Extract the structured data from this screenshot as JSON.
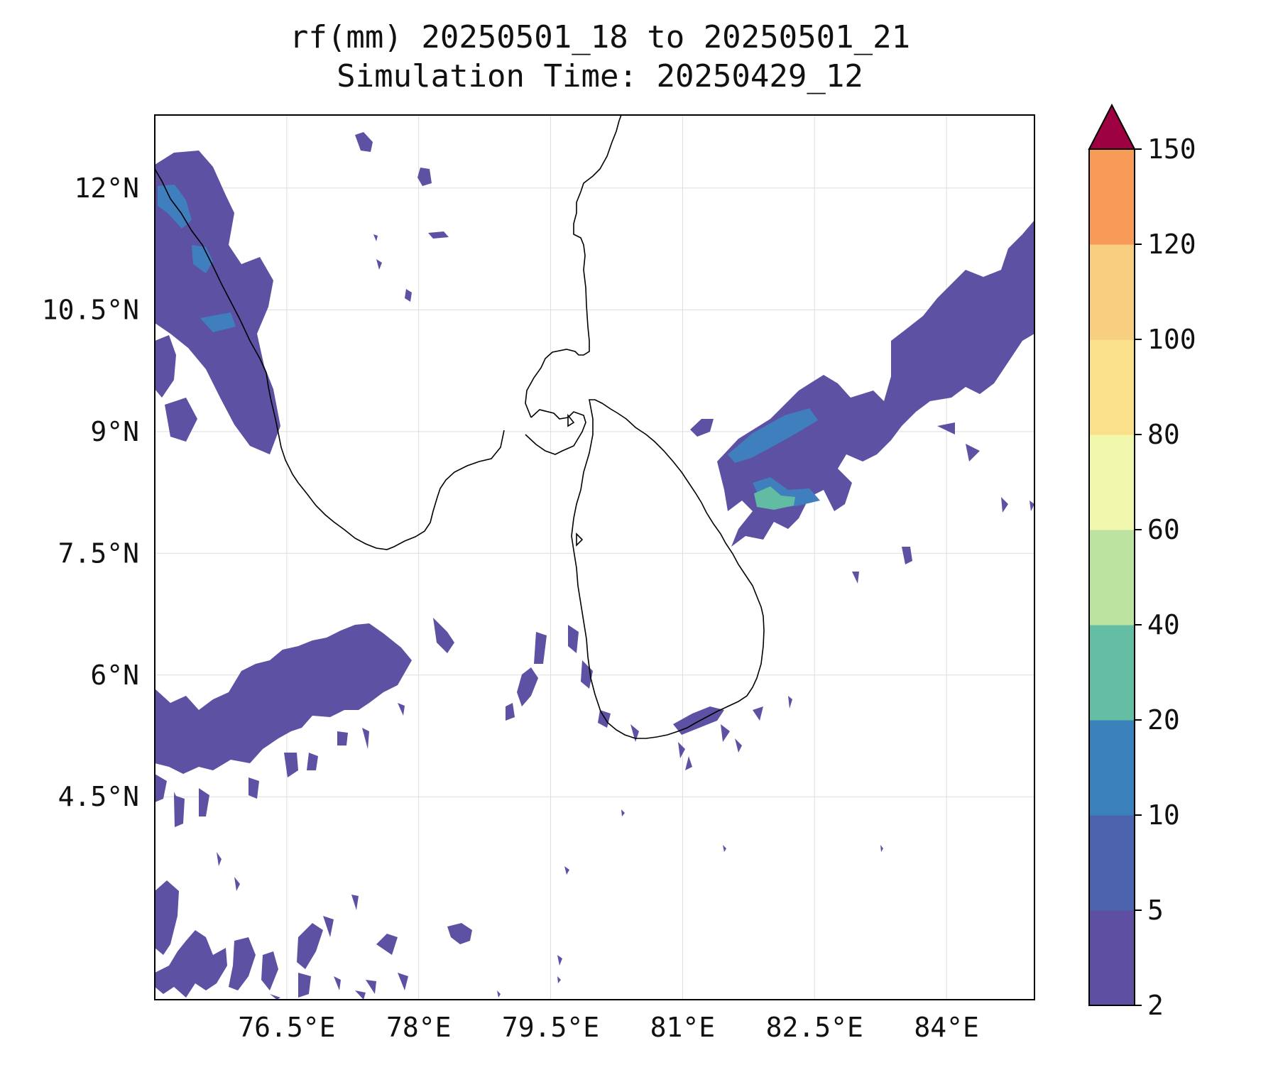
{
  "title": {
    "line1": "rf(mm) 20250501_18 to 20250501_21",
    "line2": "Simulation Time: 20250429_12"
  },
  "map": {
    "lon_range": [
      75.0,
      85.0
    ],
    "lat_range": [
      2.0,
      12.9
    ],
    "x_ticks": [
      {
        "value": 76.5,
        "label": "76.5°E"
      },
      {
        "value": 78.0,
        "label": "78°E"
      },
      {
        "value": 79.5,
        "label": "79.5°E"
      },
      {
        "value": 81.0,
        "label": "81°E"
      },
      {
        "value": 82.5,
        "label": "82.5°E"
      },
      {
        "value": 84.0,
        "label": "84°E"
      }
    ],
    "y_ticks": [
      {
        "value": 12.0,
        "label": "12°N"
      },
      {
        "value": 10.5,
        "label": "10.5°N"
      },
      {
        "value": 9.0,
        "label": "9°N"
      },
      {
        "value": 7.5,
        "label": "7.5°N"
      },
      {
        "value": 6.0,
        "label": "6°N"
      },
      {
        "value": 4.5,
        "label": "4.5°N"
      }
    ],
    "gridlines": true,
    "coastline_color": "#000000"
  },
  "colorbar": {
    "levels": [
      "2",
      "5",
      "10",
      "20",
      "40",
      "60",
      "80",
      "100",
      "120",
      "150"
    ],
    "colors": [
      "#5e4fa2",
      "#4b64ad",
      "#3a80ba",
      "#63bea4",
      "#bde3a0",
      "#f1f8ad",
      "#fbe08a",
      "#f8ce80",
      "#f89a58",
      "#d53e4f"
    ],
    "extend_color": "#9e0142",
    "extend": "max"
  },
  "precip_colors": {
    "low": "#5c51a3",
    "mid": "#3f7fbd",
    "high": "#62bca4"
  }
}
